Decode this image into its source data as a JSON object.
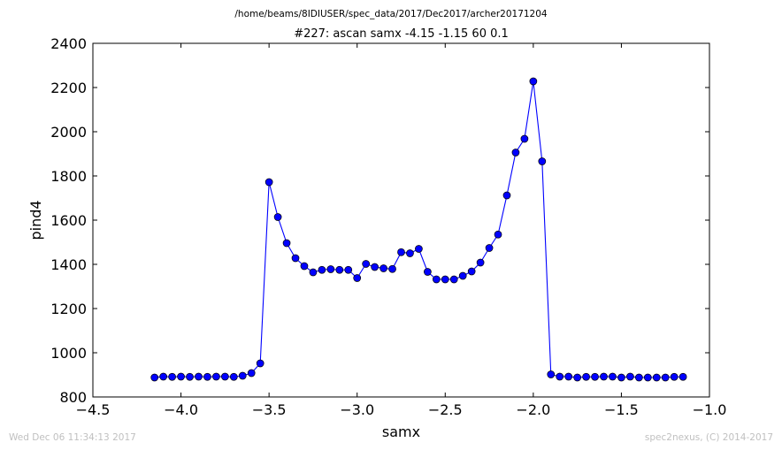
{
  "figure": {
    "suptitle": "/home/beams/8IDIUSER/spec_data/2017/Dec2017/archer20171204",
    "footer_left": "Wed Dec 06 11:34:13 2017",
    "footer_right": "spec2nexus, (C) 2014-2017"
  },
  "chart_data": {
    "type": "line",
    "title": "#227: ascan  samx -4.15 -1.15  60 0.1",
    "xlabel": "samx",
    "ylabel": "pind4",
    "xlim": [
      -4.5,
      -1.0
    ],
    "ylim": [
      800,
      2400
    ],
    "xticks": [
      -4.5,
      -4.0,
      -3.5,
      -3.0,
      -2.5,
      -2.0,
      -1.5,
      -1.0
    ],
    "xtick_labels": [
      "−4.5",
      "−4.0",
      "−3.5",
      "−3.0",
      "−2.5",
      "−2.0",
      "−1.5",
      "−1.0"
    ],
    "yticks": [
      800,
      1000,
      1200,
      1400,
      1600,
      1800,
      2000,
      2200,
      2400
    ],
    "ytick_labels": [
      "800",
      "1000",
      "1200",
      "1400",
      "1600",
      "1800",
      "2000",
      "2200",
      "2400"
    ],
    "grid": false,
    "series": [
      {
        "color": "#0000ff",
        "marker": "circle",
        "x": [
          -4.15,
          -4.1,
          -4.05,
          -4.0,
          -3.95,
          -3.9,
          -3.85,
          -3.8,
          -3.75,
          -3.7,
          -3.65,
          -3.6,
          -3.55,
          -3.5,
          -3.45,
          -3.4,
          -3.35,
          -3.3,
          -3.25,
          -3.2,
          -3.15,
          -3.1,
          -3.05,
          -3.0,
          -2.95,
          -2.9,
          -2.85,
          -2.8,
          -2.75,
          -2.7,
          -2.65,
          -2.6,
          -2.55,
          -2.5,
          -2.45,
          -2.4,
          -2.35,
          -2.3,
          -2.25,
          -2.2,
          -2.15,
          -2.1,
          -2.05,
          -2.0,
          -1.95,
          -1.9,
          -1.85,
          -1.8,
          -1.75,
          -1.7,
          -1.65,
          -1.6,
          -1.55,
          -1.5,
          -1.45,
          -1.4,
          -1.35,
          -1.3,
          -1.25,
          -1.2,
          -1.15
        ],
        "y": [
          888,
          892,
          891,
          892,
          891,
          892,
          891,
          892,
          892,
          891,
          896,
          908,
          952,
          1772,
          1614,
          1496,
          1428,
          1392,
          1364,
          1375,
          1378,
          1375,
          1375,
          1338,
          1402,
          1388,
          1382,
          1379,
          1455,
          1450,
          1470,
          1366,
          1332,
          1332,
          1332,
          1348,
          1368,
          1408,
          1474,
          1535,
          1712,
          1906,
          1968,
          2228,
          1866,
          902,
          892,
          892,
          888,
          891,
          891,
          892,
          892,
          888,
          892,
          888,
          888,
          888,
          888,
          891,
          891
        ]
      }
    ]
  }
}
